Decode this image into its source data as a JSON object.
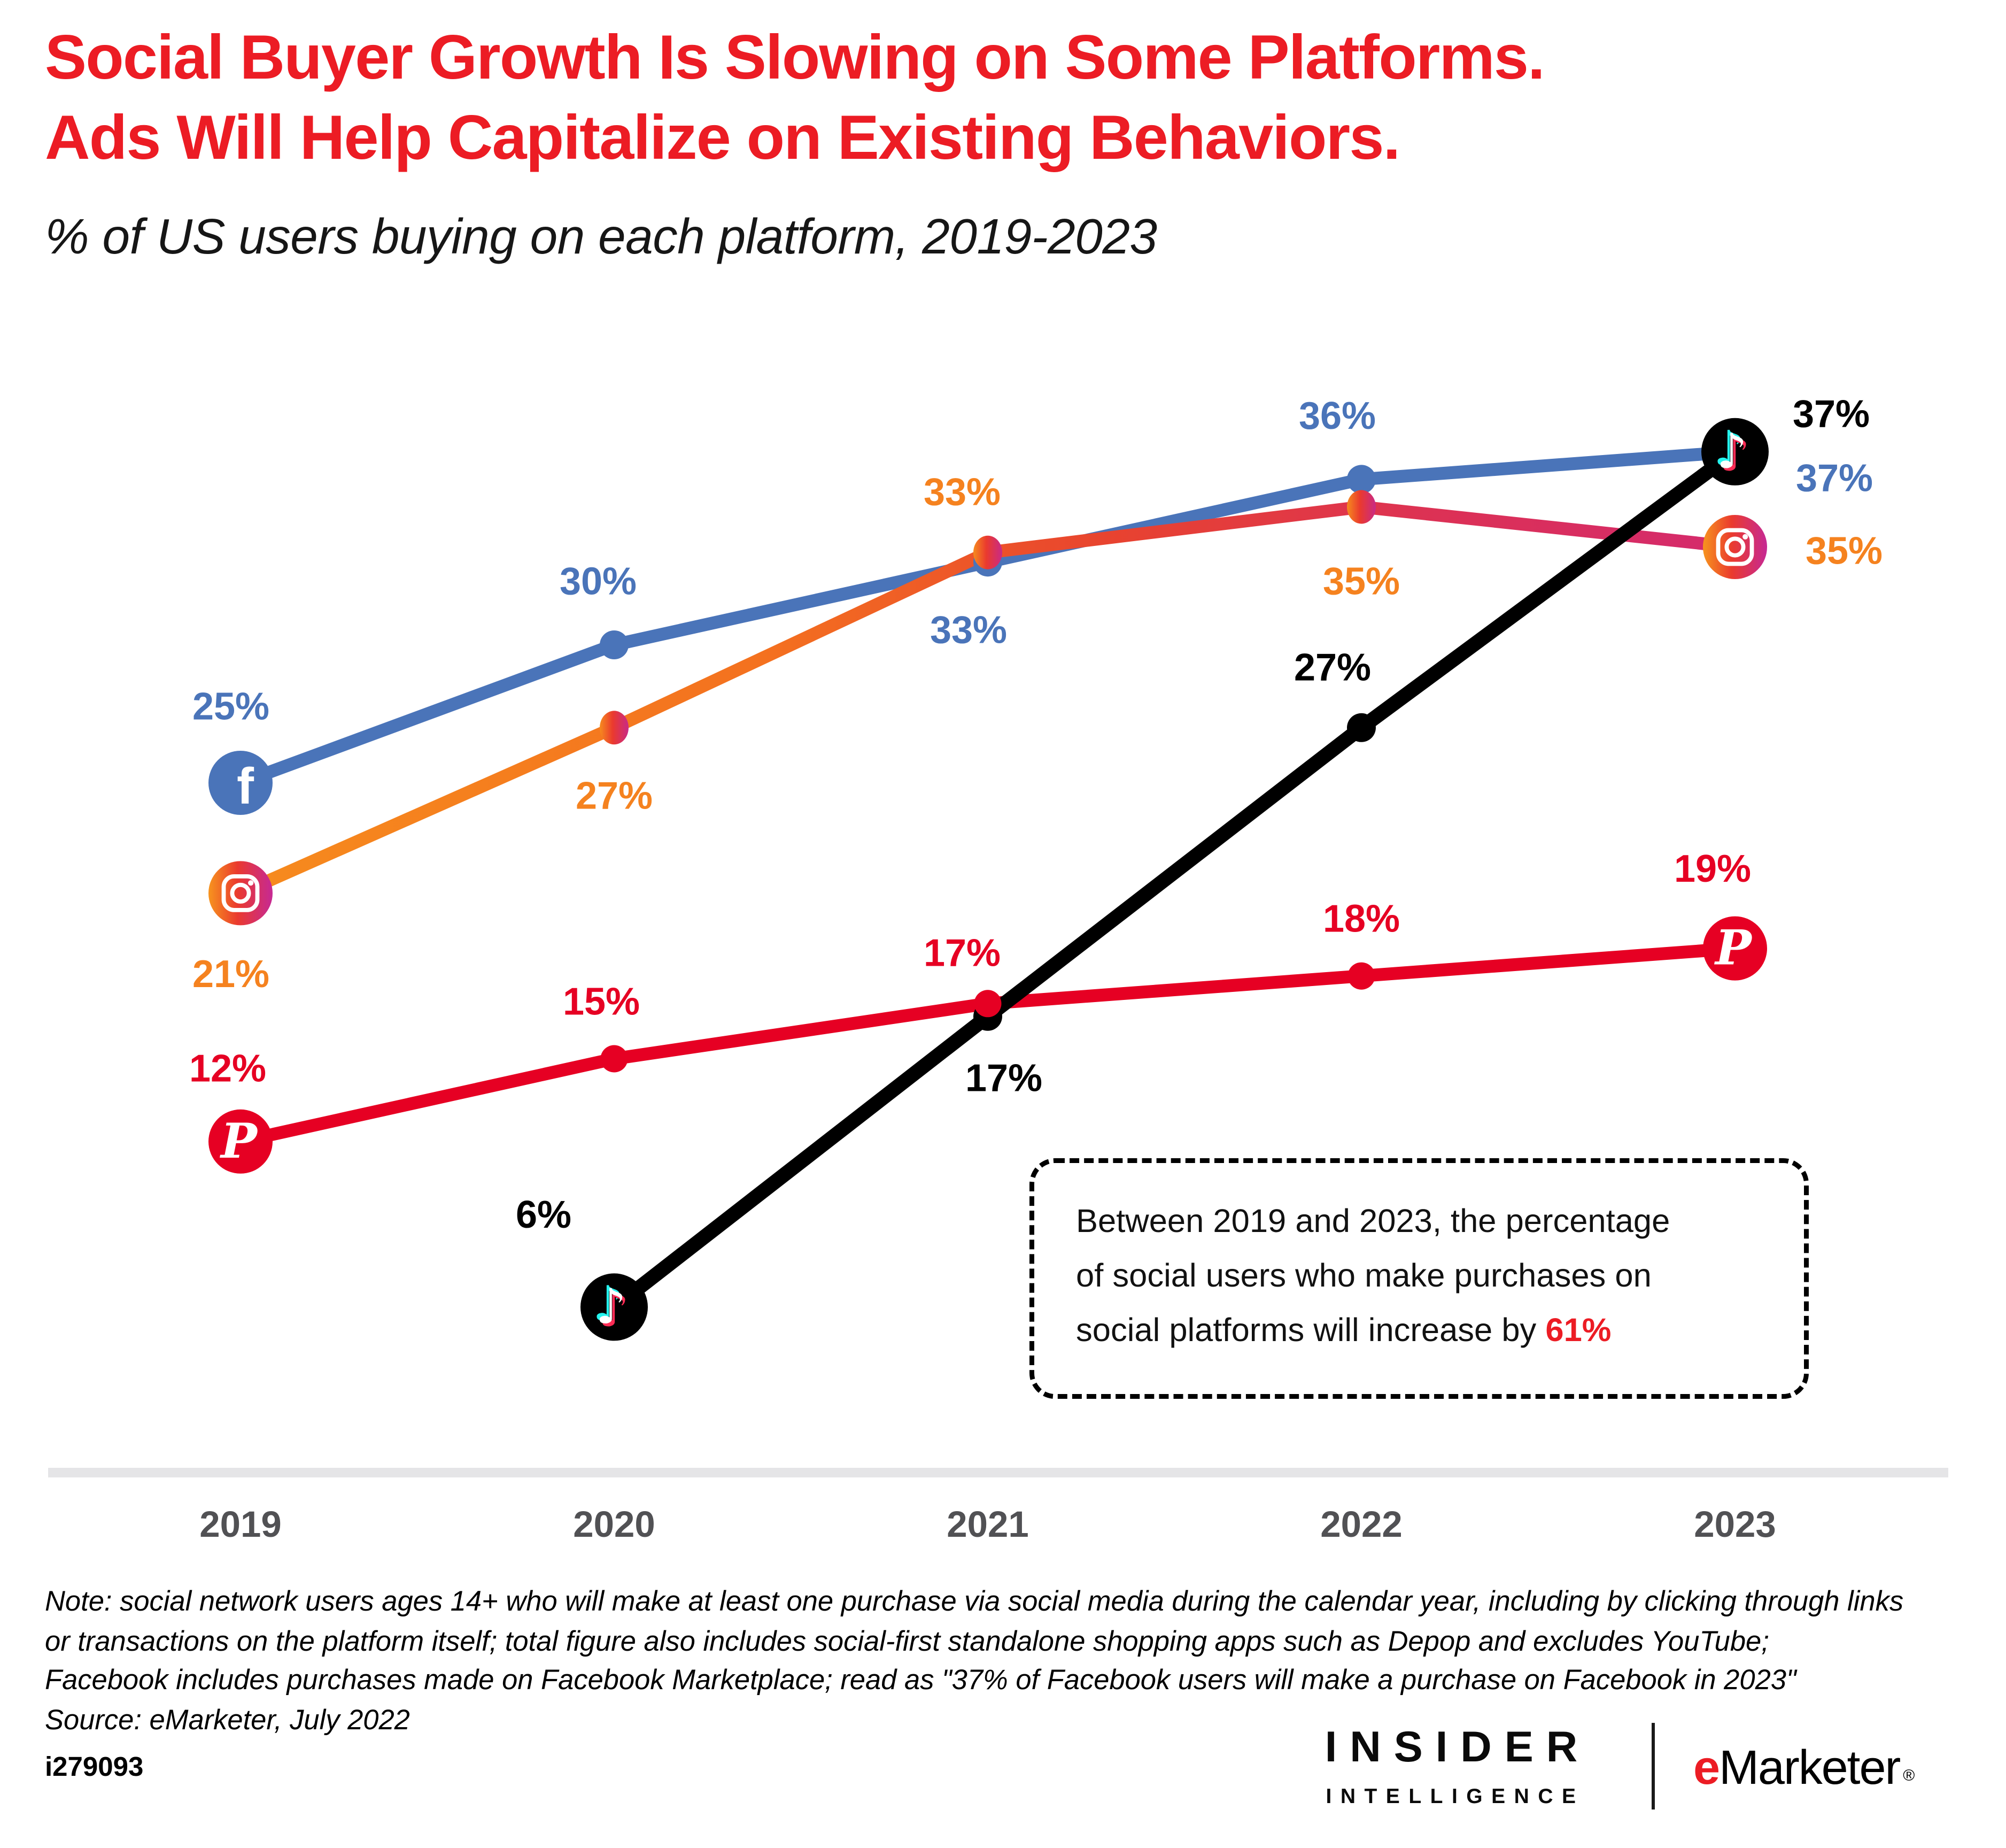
{
  "header": {
    "title_line1": "Social Buyer Growth Is Slowing on Some Platforms.",
    "title_line2": "Ads Will Help Capitalize on Existing Behaviors.",
    "subtitle": "% of US users buying on each platform, 2019-2023",
    "title_color": "#EC1C24"
  },
  "chart_data": {
    "type": "line",
    "title": "% of US users buying on each platform, 2019-2023",
    "x_labels": [
      "2019",
      "2020",
      "2021",
      "2022",
      "2023"
    ],
    "ylim": [
      0,
      40
    ],
    "grid": false,
    "legend": "platform icons drawn on line endpoints",
    "axis_color": "#E5E5E7",
    "series": [
      {
        "name": "Facebook",
        "icon": "facebook-icon",
        "color": "#4A74B9",
        "values": [
          25,
          30,
          33,
          36,
          37
        ],
        "labels": [
          "25%",
          "30%",
          "33%",
          "36%",
          "37%"
        ],
        "label_offsets": [
          [
            -6,
            -48
          ],
          [
            -10,
            -40
          ],
          [
            -12,
            42
          ],
          [
            -15,
            -40
          ],
          [
            62,
            16
          ]
        ],
        "markers": [
          "icon",
          "dot",
          "dot",
          "dot",
          "none"
        ]
      },
      {
        "name": "Instagram",
        "icon": "instagram-icon",
        "color": "#F5821F",
        "color_end": "#D42A6D",
        "label_color": "#F5821F",
        "values": [
          21,
          27,
          33,
          35,
          35
        ],
        "labels": [
          "21%",
          "27%",
          "33%",
          "35%",
          "35%"
        ],
        "label_offsets": [
          [
            -6,
            50
          ],
          [
            0,
            42
          ],
          [
            -16,
            -38
          ],
          [
            0,
            46
          ],
          [
            68,
            2
          ]
        ],
        "markers": [
          "icon",
          "dot",
          "dot",
          "dot",
          "icon"
        ]
      },
      {
        "name": "Pinterest",
        "icon": "pinterest-icon",
        "color": "#E60023",
        "values": [
          12,
          15,
          17,
          18,
          19
        ],
        "labels": [
          "12%",
          "15%",
          "17%",
          "18%",
          "19%"
        ],
        "label_offsets": [
          [
            -8,
            -46
          ],
          [
            -8,
            -36
          ],
          [
            -16,
            -32
          ],
          [
            0,
            -36
          ],
          [
            -14,
            -50
          ]
        ],
        "markers": [
          "icon",
          "dot",
          "dot",
          "dot",
          "icon"
        ]
      },
      {
        "name": "TikTok",
        "icon": "tiktok-icon",
        "color": "#000000",
        "values": [
          null,
          6,
          17,
          27,
          37
        ],
        "labels": [
          "",
          "6%",
          "17%",
          "27%",
          "37%"
        ],
        "label_offsets": [
          [
            0,
            0
          ],
          [
            -44,
            -58
          ],
          [
            10,
            38
          ],
          [
            -18,
            -38
          ],
          [
            60,
            -24
          ]
        ],
        "markers": [
          "none",
          "icon",
          "dot",
          "dot",
          "icon"
        ]
      }
    ]
  },
  "callout": {
    "line1": "Between 2019 and 2023, the percentage",
    "line2": "of social users who make purchases on",
    "line3_before": "social platforms will increase by ",
    "highlight": "61%",
    "highlight_color": "#EC1C24"
  },
  "note": {
    "line1": "Note: social network users ages 14+ who will make at least one purchase via social media during the calendar year, including by clicking through links",
    "line2": "or transactions on the platform itself; total figure also includes social-first standalone shopping apps such as Depop and excludes YouTube;",
    "line3": "Facebook includes purchases made on Facebook Marketplace; read as \"37% of Facebook users will make a purchase on Facebook in 2023\"",
    "line4": "Source: eMarketer, July 2022"
  },
  "footer": {
    "chart_id": "i279093",
    "brand_top": "INSIDER",
    "brand_bottom": "INTELLIGENCE",
    "brand_e": "e",
    "brand_rest": "Marketer",
    "reg_mark": "®"
  }
}
